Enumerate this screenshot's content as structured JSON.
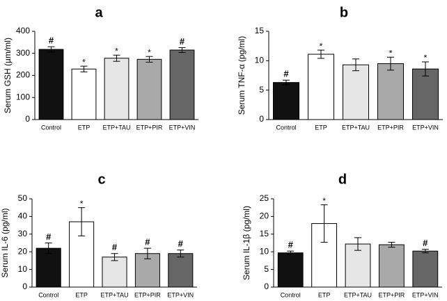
{
  "chart_data": [
    {
      "type": "bar",
      "panel_label": "a",
      "ylabel": "Serum GSH (µm/ml)",
      "ylim": [
        0,
        400
      ],
      "yticks": [
        "0",
        "100",
        "200",
        "300",
        "400"
      ],
      "categories": [
        "Control",
        "ETP",
        "ETP+TAU",
        "ETP+PIR",
        "ETP+VIN"
      ],
      "values": [
        318,
        229,
        278,
        273,
        315
      ],
      "errors": [
        12,
        13,
        14,
        13,
        11
      ],
      "annotations": [
        "#",
        "*",
        "*",
        "*",
        "#"
      ],
      "colors": [
        "#111111",
        "#ffffff",
        "#e6e6e6",
        "#a9a9a9",
        "#666666"
      ]
    },
    {
      "type": "bar",
      "panel_label": "b",
      "ylabel": "Serum TNF-α (pg/ml)",
      "ylim": [
        0,
        15
      ],
      "yticks": [
        "0",
        "5",
        "10",
        "15"
      ],
      "categories": [
        "Control",
        "ETP",
        "ETP+TAU",
        "ETP+PIR",
        "ETP+VIN"
      ],
      "values": [
        6.3,
        11.1,
        9.3,
        9.5,
        8.6
      ],
      "errors": [
        0.4,
        0.7,
        1.0,
        1.1,
        1.2
      ],
      "annotations": [
        "#",
        "*",
        "",
        "*",
        "*"
      ],
      "colors": [
        "#111111",
        "#ffffff",
        "#e6e6e6",
        "#a9a9a9",
        "#666666"
      ]
    },
    {
      "type": "bar",
      "panel_label": "c",
      "ylabel": "Serum IL-6 (pg/ml)",
      "ylim": [
        0,
        50
      ],
      "yticks": [
        "0",
        "10",
        "20",
        "30",
        "40",
        "50"
      ],
      "categories": [
        "Control",
        "ETP",
        "ETP+TAU",
        "ETP+PIR",
        "ETP+VIN"
      ],
      "values": [
        22,
        37,
        17,
        19,
        19
      ],
      "errors": [
        3,
        8,
        2,
        3,
        2
      ],
      "annotations": [
        "#",
        "*",
        "#",
        "#",
        "#"
      ],
      "colors": [
        "#111111",
        "#ffffff",
        "#e6e6e6",
        "#a9a9a9",
        "#666666"
      ]
    },
    {
      "type": "bar",
      "panel_label": "d",
      "ylabel": "Serum IL-1β (pg/ml)",
      "ylim": [
        0,
        25
      ],
      "yticks": [
        "0",
        "5",
        "10",
        "15",
        "20",
        "25"
      ],
      "categories": [
        "Control",
        "ETP",
        "ETP+TAU",
        "ETP+PIR",
        "ETP+VIN"
      ],
      "values": [
        9.7,
        18,
        12.2,
        12,
        10.2
      ],
      "errors": [
        0.5,
        5.3,
        1.8,
        0.7,
        0.5
      ],
      "annotations": [
        "#",
        "*",
        "",
        "",
        "#"
      ],
      "colors": [
        "#111111",
        "#ffffff",
        "#e6e6e6",
        "#a9a9a9",
        "#666666"
      ]
    }
  ]
}
